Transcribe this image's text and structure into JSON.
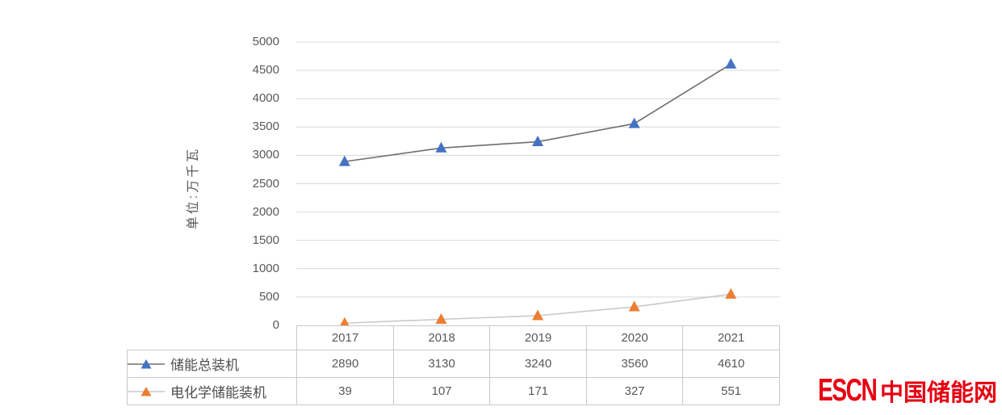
{
  "chart_data": {
    "type": "line",
    "title": "",
    "ylabel": "单位:万千瓦",
    "xlabel": "",
    "categories": [
      "2017",
      "2018",
      "2019",
      "2020",
      "2021"
    ],
    "series": [
      {
        "name": "储能总装机",
        "values": [
          2890,
          3130,
          3240,
          3560,
          4610
        ],
        "marker": "triangle",
        "marker_color": "#4472c4",
        "line_color": "#6e6e6e"
      },
      {
        "name": "电化学储能装机",
        "values": [
          39,
          107,
          171,
          327,
          551
        ],
        "marker": "triangle",
        "marker_color": "#ed7d31",
        "line_color": "#c9c9c9"
      }
    ],
    "ylim": [
      0,
      5000
    ],
    "ytick_interval": 500,
    "grid": true,
    "gridline_color": "#d9d9d9",
    "legend_position": "table-left-of-rows"
  },
  "branding": {
    "logo_en": "ESCN",
    "logo_zh": "中国储能网",
    "logo_color": "#e60012"
  },
  "styles": {
    "axis_text_color": "#595959",
    "table_border_color": "#c9c9c9",
    "background": "#ffffff"
  }
}
